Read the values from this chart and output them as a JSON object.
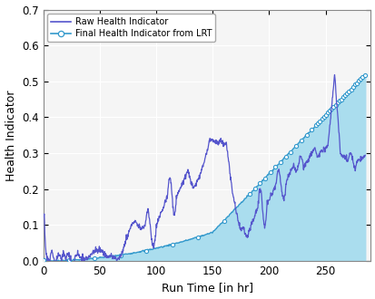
{
  "title": "",
  "xlabel": "Run Time [in hr]",
  "ylabel": "Health Indicator",
  "xlim": [
    0,
    290
  ],
  "ylim": [
    0,
    0.7
  ],
  "xticks": [
    0,
    50,
    100,
    150,
    200,
    250
  ],
  "yticks": [
    0.0,
    0.1,
    0.2,
    0.3,
    0.4,
    0.5,
    0.6,
    0.7
  ],
  "raw_color": "#5555cc",
  "lrt_color": "#3399cc",
  "lrt_fill_color": "#aaddee",
  "legend_labels": [
    "Raw Health Indicator",
    "Final Health Indicator from LRT"
  ],
  "bg_color": "#f5f5f5",
  "grid_color": "#ffffff",
  "figsize": [
    4.14,
    3.3
  ],
  "dpi": 100
}
